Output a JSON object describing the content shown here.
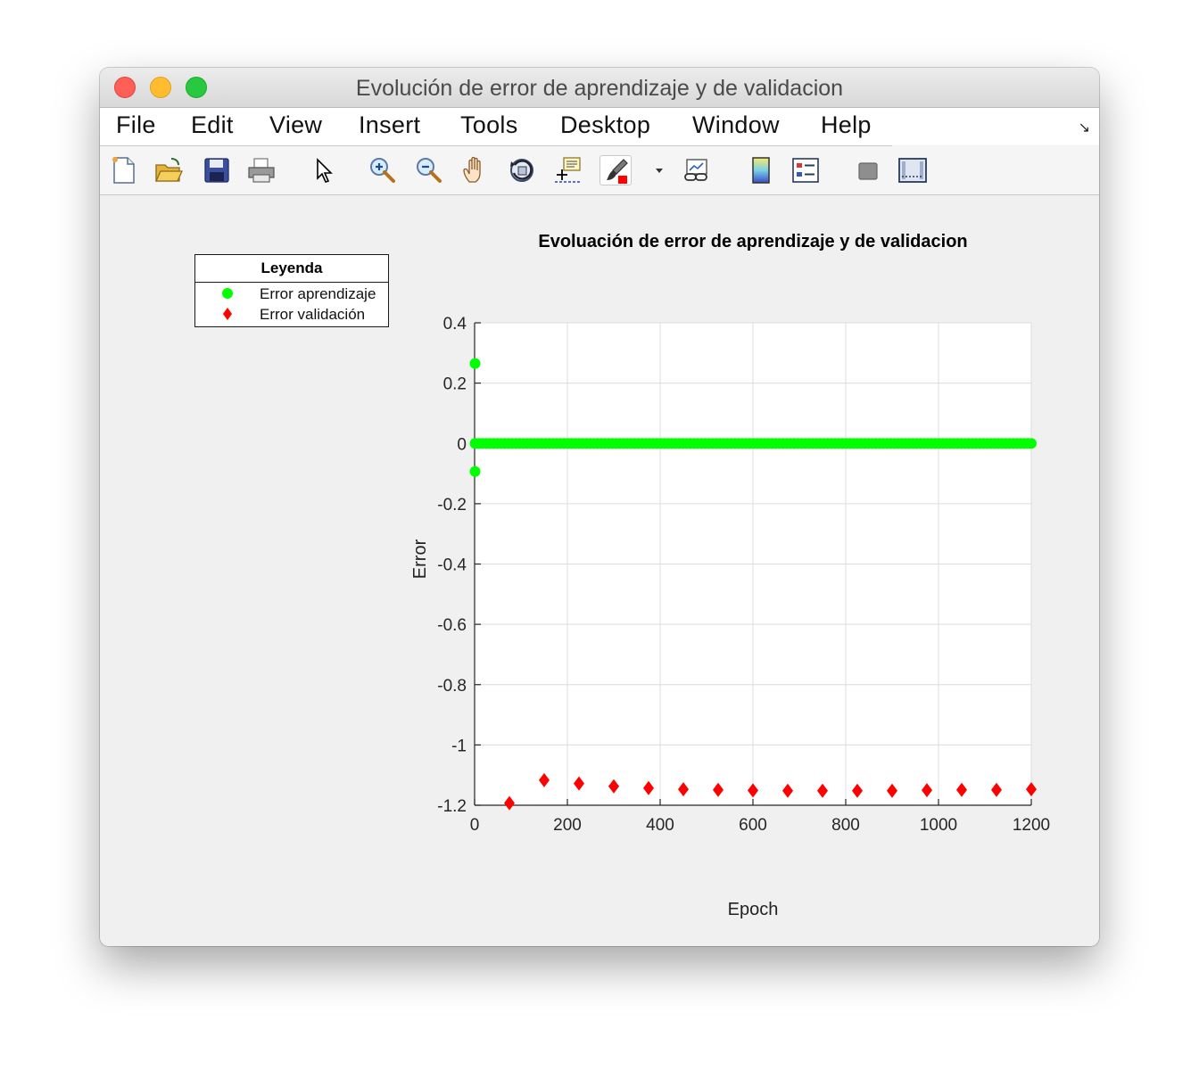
{
  "window": {
    "title": "Evolución de error de aprendizaje y de validacion"
  },
  "menu": [
    "File",
    "Edit",
    "View",
    "Insert",
    "Tools",
    "Desktop",
    "Window",
    "Help"
  ],
  "toolbar": {
    "icons": [
      "new-figure-icon",
      "open-file-icon",
      "save-icon",
      "print-icon",
      "pointer-icon",
      "zoom-in-icon",
      "zoom-out-icon",
      "pan-icon",
      "rotate-3d-icon",
      "data-cursor-icon",
      "brush-icon",
      "dropdown-arrow-icon",
      "link-plot-icon",
      "colorbar-icon",
      "legend-icon",
      "hide-plot-tools-icon",
      "show-plot-tools-icon"
    ]
  },
  "legend": {
    "title": "Leyenda",
    "entries": [
      {
        "label": "Error aprendizaje",
        "color": "#00ff00",
        "marker": "circle"
      },
      {
        "label": "Error validación",
        "color": "#ff0000",
        "marker": "diamond"
      }
    ]
  },
  "chart_data": {
    "type": "scatter",
    "title": "Evoluación de error de aprendizaje y de validacion",
    "xlabel": "Epoch",
    "ylabel": "Error",
    "xlim": [
      0,
      1200
    ],
    "ylim": [
      -1.2,
      0.4
    ],
    "xticks": [
      0,
      200,
      400,
      600,
      800,
      1000,
      1200
    ],
    "yticks": [
      0.4,
      0.2,
      0,
      -0.2,
      -0.4,
      -0.6,
      -0.8,
      -1,
      -1.2
    ],
    "xtick_labels": [
      "0",
      "200",
      "400",
      "600",
      "800",
      "1000",
      "1200"
    ],
    "ytick_labels": [
      "0.4",
      "0.2",
      "0",
      "-0.2",
      "-0.4",
      "-0.6",
      "-0.8",
      "-1",
      "-1.2"
    ],
    "grid": true,
    "series": [
      {
        "name": "Error aprendizaje",
        "marker": "circle",
        "color": "#00ff00",
        "note_dense_points": "one point per epoch 1..1200 at y = 0",
        "points": [
          [
            1,
            0.265
          ],
          [
            1,
            -0.093
          ]
        ],
        "dense_range": {
          "x_from": 1,
          "x_to": 1200,
          "y": 0
        }
      },
      {
        "name": "Error validación",
        "marker": "diamond",
        "color": "#ff0000",
        "points": [
          [
            75,
            -1.193
          ],
          [
            150,
            -1.117
          ],
          [
            225,
            -1.128
          ],
          [
            300,
            -1.137
          ],
          [
            375,
            -1.143
          ],
          [
            450,
            -1.147
          ],
          [
            525,
            -1.149
          ],
          [
            600,
            -1.151
          ],
          [
            675,
            -1.152
          ],
          [
            750,
            -1.152
          ],
          [
            825,
            -1.152
          ],
          [
            900,
            -1.152
          ],
          [
            975,
            -1.15
          ],
          [
            1050,
            -1.149
          ],
          [
            1125,
            -1.149
          ],
          [
            1200,
            -1.147
          ]
        ]
      }
    ]
  }
}
